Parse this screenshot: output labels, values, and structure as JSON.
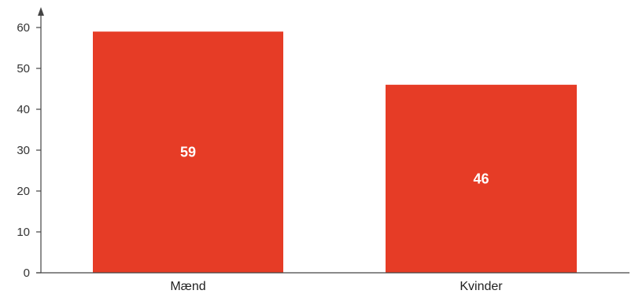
{
  "chart_data": {
    "type": "bar",
    "categories": [
      "Mænd",
      "Kvinder"
    ],
    "values": [
      59,
      46
    ],
    "data_labels": [
      "59",
      "46"
    ],
    "title": "",
    "xlabel": "",
    "ylabel": "",
    "ylim": [
      0,
      60
    ],
    "yticks": [
      0,
      10,
      20,
      30,
      40,
      50,
      60
    ],
    "grid": false,
    "legend": "none",
    "bar_color": "#e63c26"
  }
}
